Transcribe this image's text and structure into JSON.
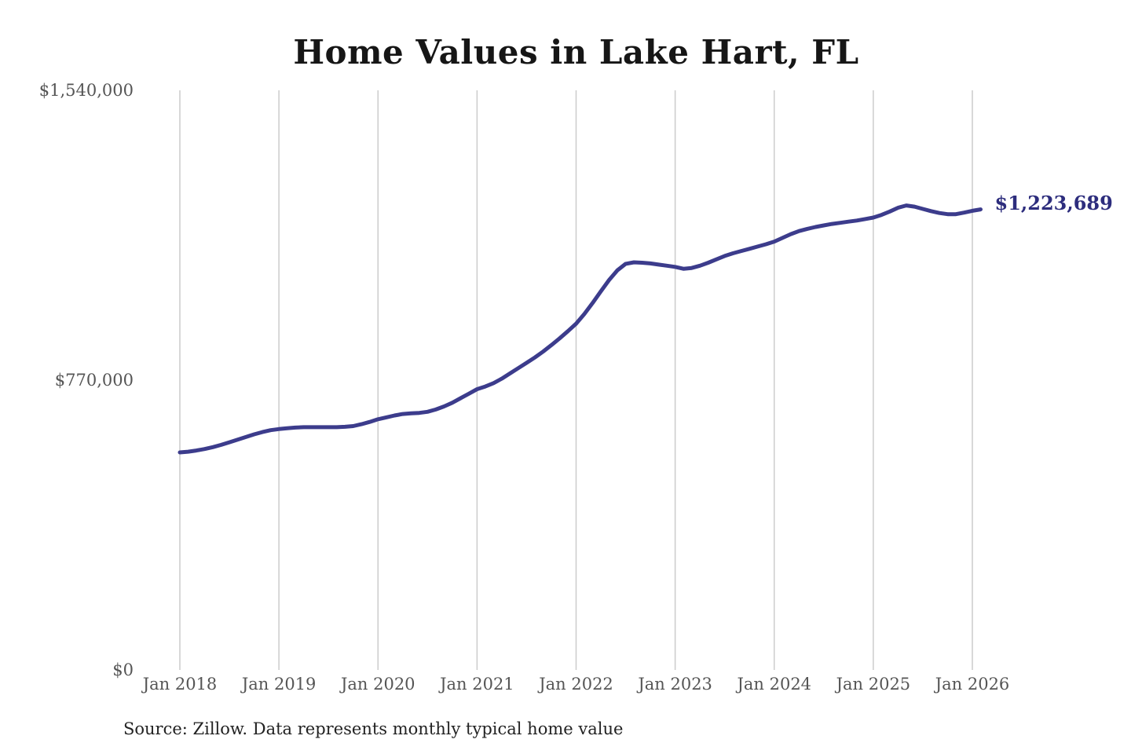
{
  "title": "Home Values in Lake Hart, FL",
  "source_note": "Source: Zillow. Data represents monthly typical home value",
  "colors": {
    "line": "#3c3c8c",
    "end_label": "#2d2d7d",
    "gridline": "#cccccc",
    "axis_text": "#555555",
    "title_text": "#161616",
    "source_text": "#222222",
    "background": "#ffffff"
  },
  "chart_data": {
    "type": "line",
    "title": "Home Values in Lake Hart, FL",
    "unit": "USD",
    "grid": "vertical-only",
    "legend": "none",
    "end_label": "$1,223,689",
    "final_value": 1223689,
    "ylim": [
      0,
      1540000
    ],
    "y_tick_values": [
      0,
      770000,
      1540000
    ],
    "y_tick_labels": [
      "$0",
      "$770,000",
      "$1,540,000"
    ],
    "x_tick_labels": [
      "Jan 2018",
      "Jan 2019",
      "Jan 2020",
      "Jan 2021",
      "Jan 2022",
      "Jan 2023",
      "Jan 2024",
      "Jan 2025",
      "Jan 2026"
    ],
    "months_per_tick": 12,
    "series": [
      {
        "name": "Monthly typical home value",
        "start_month": "2018-01",
        "end_month": "2026-02",
        "color": "#3c3c8c",
        "values": [
          578000,
          580000,
          583000,
          587000,
          592000,
          598000,
          605000,
          612000,
          619000,
          626000,
          632000,
          637000,
          640000,
          642000,
          644000,
          645000,
          645000,
          645000,
          645000,
          645000,
          646000,
          648000,
          653000,
          659000,
          666000,
          671000,
          676000,
          680000,
          682000,
          683000,
          686000,
          692000,
          700000,
          710000,
          722000,
          734000,
          746000,
          753000,
          762000,
          774000,
          788000,
          802000,
          816000,
          830000,
          846000,
          863000,
          881000,
          900000,
          920000,
          946000,
          975000,
          1006000,
          1036000,
          1062000,
          1079000,
          1083000,
          1082000,
          1080000,
          1077000,
          1074000,
          1071000,
          1066000,
          1068000,
          1074000,
          1082000,
          1091000,
          1100000,
          1107000,
          1113000,
          1119000,
          1125000,
          1131000,
          1138000,
          1148000,
          1158000,
          1166000,
          1172000,
          1177000,
          1181000,
          1185000,
          1188000,
          1191000,
          1194000,
          1198000,
          1202000,
          1209000,
          1218000,
          1228000,
          1234000,
          1231000,
          1225000,
          1219000,
          1214000,
          1211000,
          1211000,
          1215000,
          1220000,
          1223689
        ]
      }
    ]
  }
}
